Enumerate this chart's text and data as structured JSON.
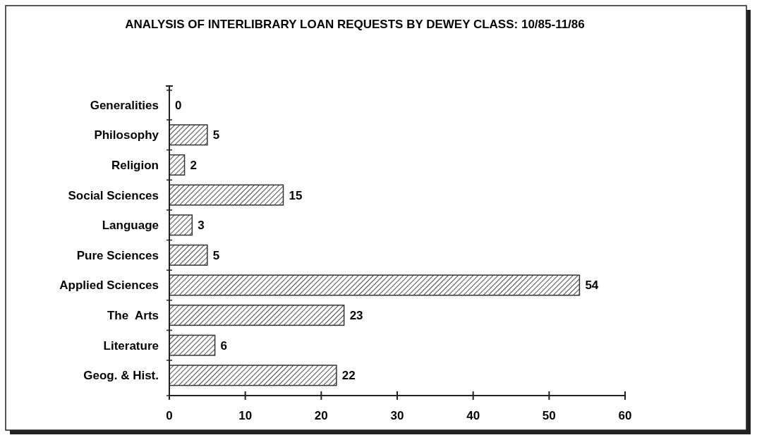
{
  "chart_data": {
    "type": "bar",
    "orientation": "horizontal",
    "title": "ANALYSIS OF INTERLIBRARY LOAN REQUESTS BY DEWEY CLASS:  10/85-11/86",
    "categories": [
      "Generalities",
      "Philosophy",
      "Religion",
      "Social Sciences",
      "Language",
      "Pure Sciences",
      "Applied Sciences",
      "The  Arts",
      "Literature",
      "Geog. & Hist."
    ],
    "values": [
      0,
      5,
      2,
      15,
      3,
      5,
      54,
      23,
      6,
      22
    ],
    "color": "#333333",
    "xlim": [
      0,
      60
    ],
    "xticks": [
      0,
      10,
      20,
      30,
      40,
      50,
      60
    ],
    "data_labels": true,
    "grid": false
  }
}
